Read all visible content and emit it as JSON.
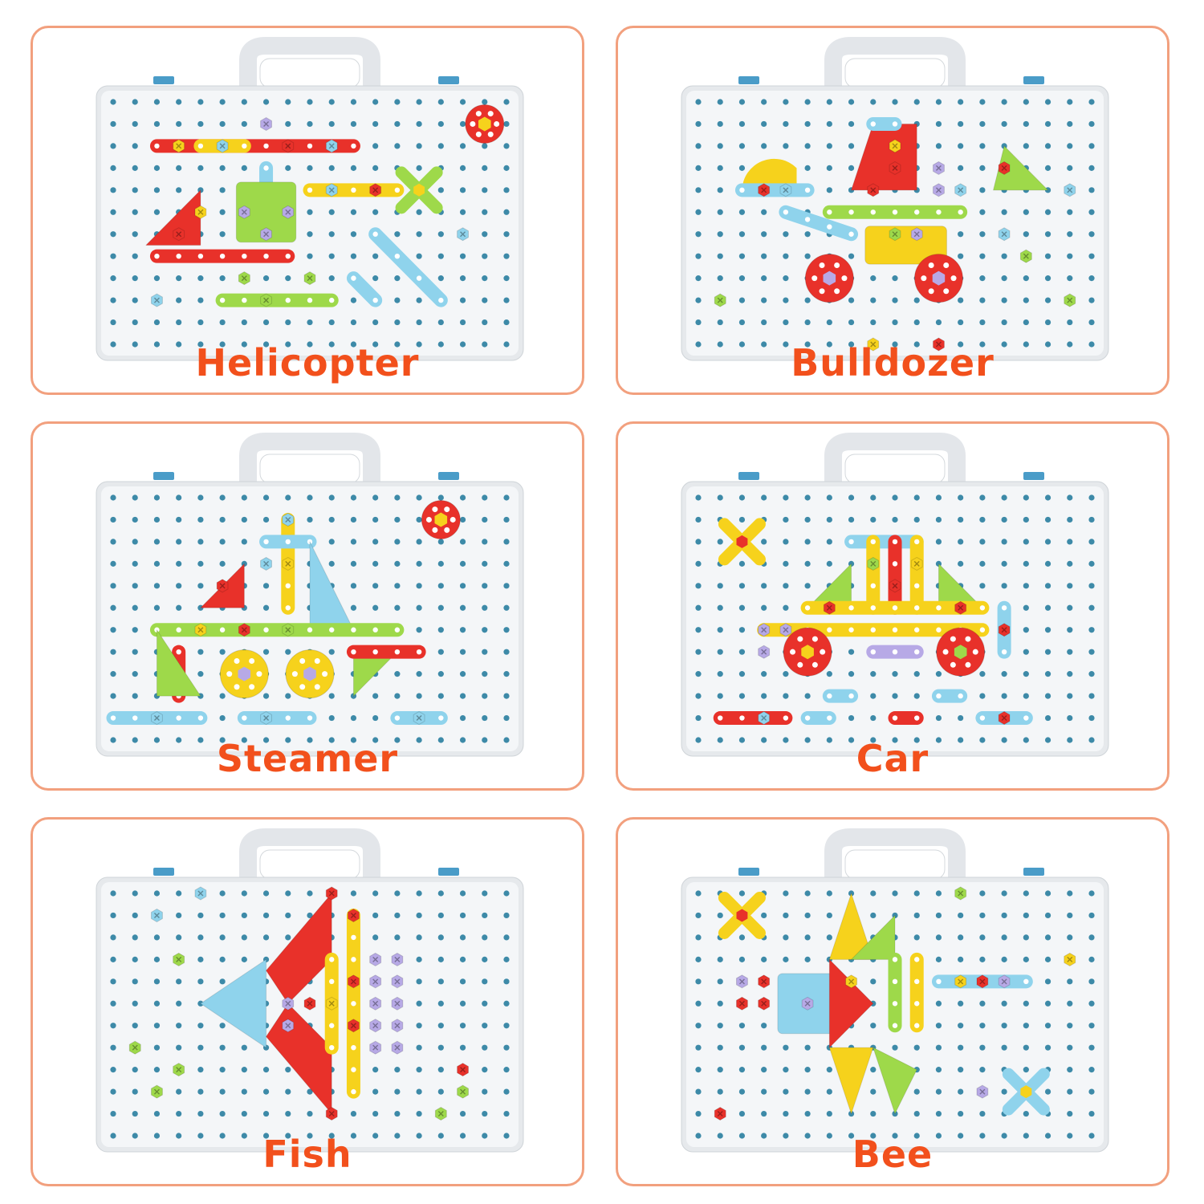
{
  "panels": [
    {
      "label": "Helicopter"
    },
    {
      "label": "Bulldozer"
    },
    {
      "label": "Steamer"
    },
    {
      "label": "Car"
    },
    {
      "label": "Fish"
    },
    {
      "label": "Bee"
    }
  ],
  "colors": {
    "border": "#f2a07e",
    "label": "#f2501c",
    "board": "#f4f6f8",
    "hole": "#3d8aa8",
    "red": "#e8312a",
    "yellow": "#f6d21c",
    "blue": "#8fd3ec",
    "green": "#9ed94a",
    "purple": "#b7a9e6"
  }
}
